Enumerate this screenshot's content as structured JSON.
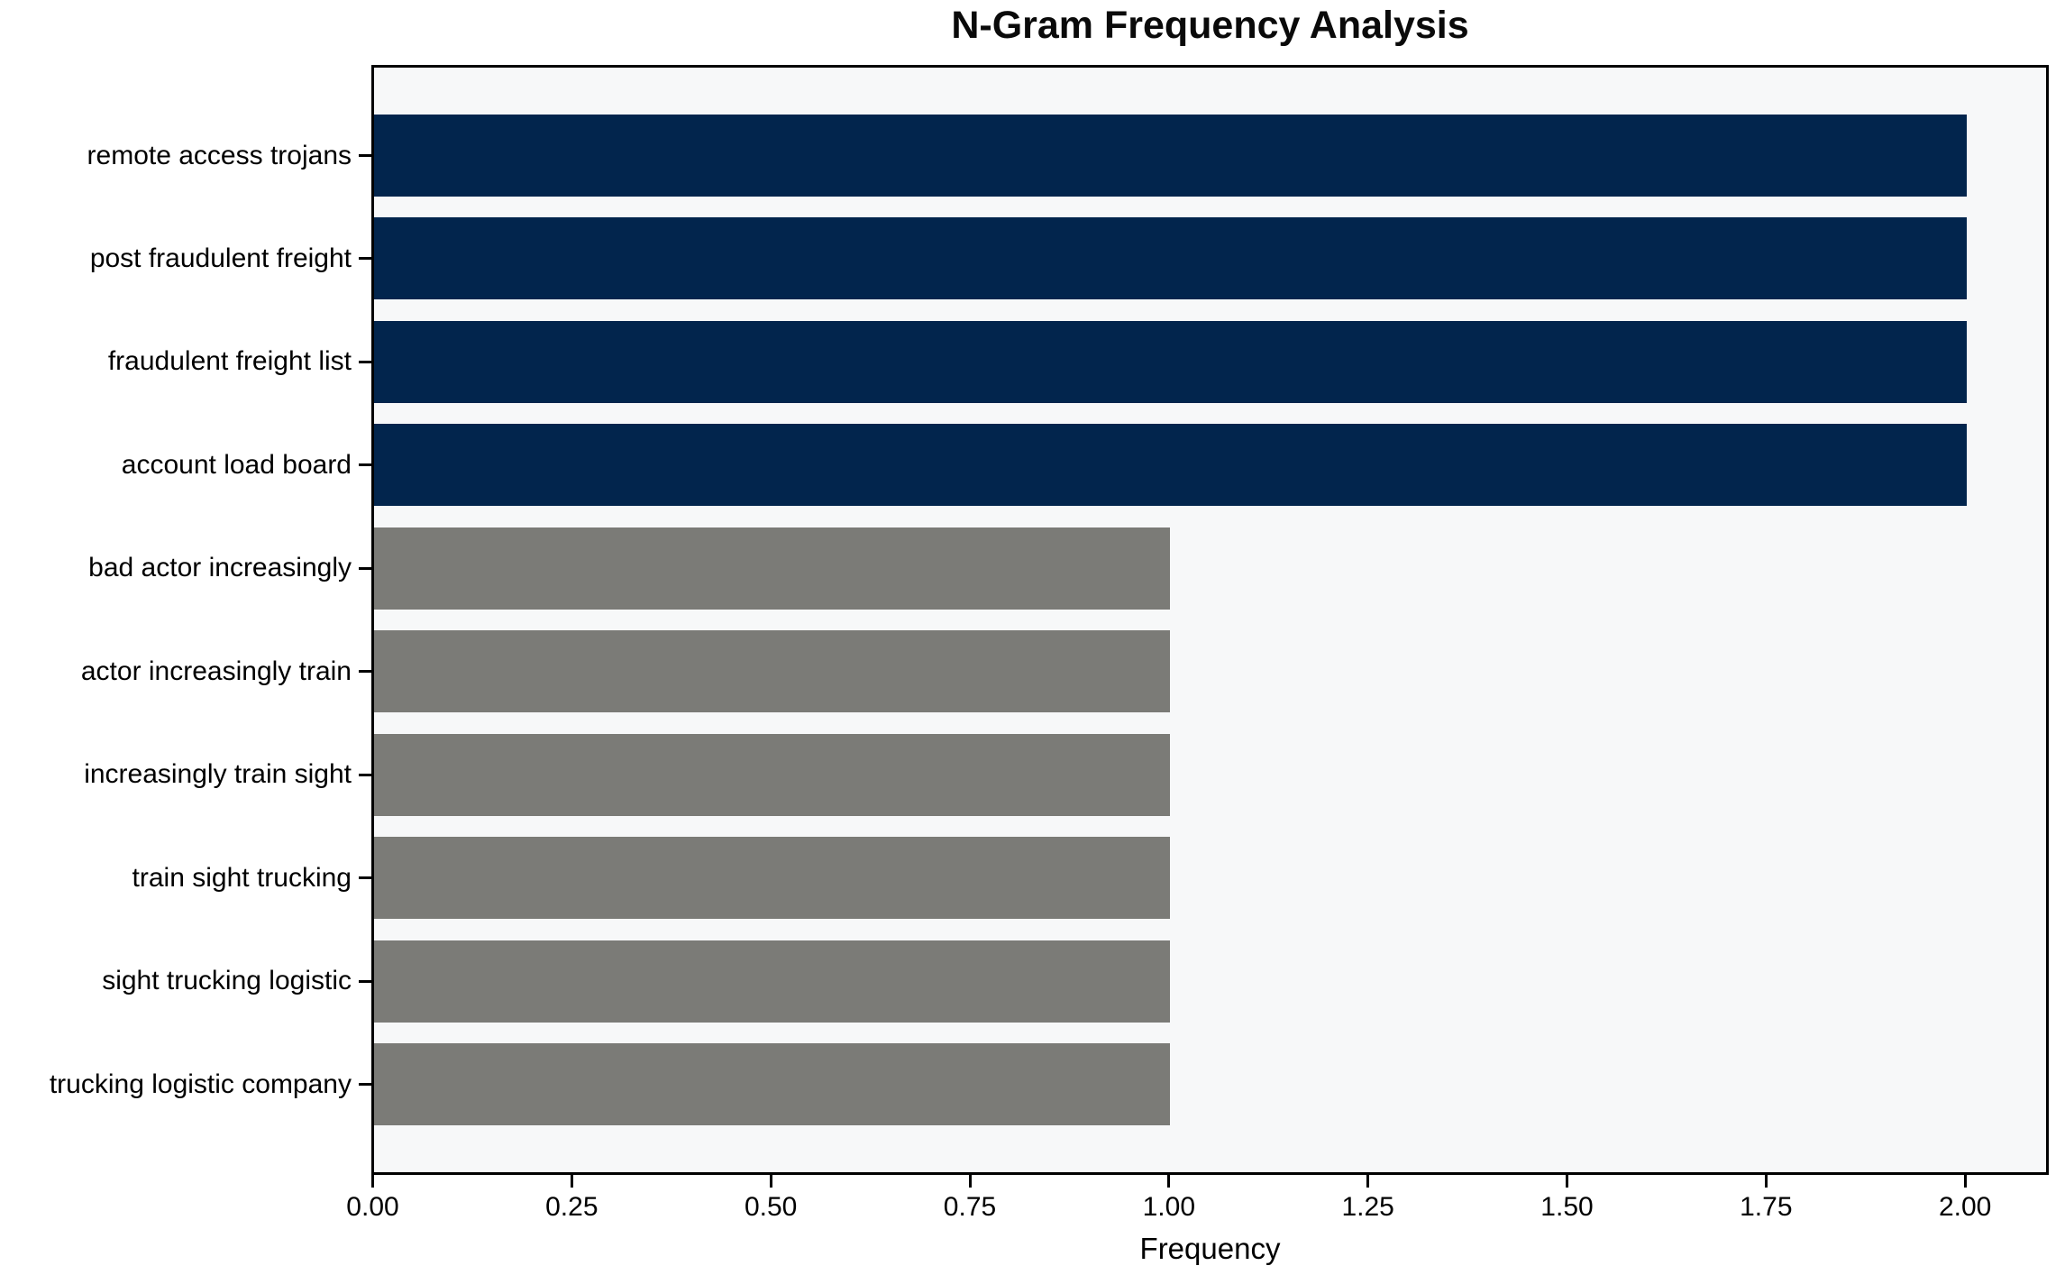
{
  "chart_data": {
    "type": "bar",
    "orientation": "horizontal",
    "title": "N-Gram Frequency Analysis",
    "xlabel": "Frequency",
    "ylabel": "",
    "categories": [
      "remote access trojans",
      "post fraudulent freight",
      "fraudulent freight list",
      "account load board",
      "bad actor increasingly",
      "actor increasingly train",
      "increasingly train sight",
      "train sight trucking",
      "sight trucking logistic",
      "trucking logistic company"
    ],
    "values": [
      2.0,
      2.0,
      2.0,
      2.0,
      1.0,
      1.0,
      1.0,
      1.0,
      1.0,
      1.0
    ],
    "bar_colors": [
      "#02254d",
      "#02254d",
      "#02254d",
      "#02254d",
      "#7b7b77",
      "#7b7b77",
      "#7b7b77",
      "#7b7b77",
      "#7b7b77",
      "#7b7b77"
    ],
    "xlim": [
      0,
      2.1
    ],
    "xticks": [
      0.0,
      0.25,
      0.5,
      0.75,
      1.0,
      1.25,
      1.5,
      1.75,
      2.0
    ],
    "xtick_labels": [
      "0.00",
      "0.25",
      "0.50",
      "0.75",
      "1.00",
      "1.25",
      "1.50",
      "1.75",
      "2.00"
    ],
    "grid": false,
    "legend": null,
    "plot_background": "#f7f8f9",
    "figure_background": "#ffffff",
    "color_legend_meaning": {
      "#02254d": "frequency 2 n-grams",
      "#7b7b77": "frequency 1 n-grams"
    }
  }
}
